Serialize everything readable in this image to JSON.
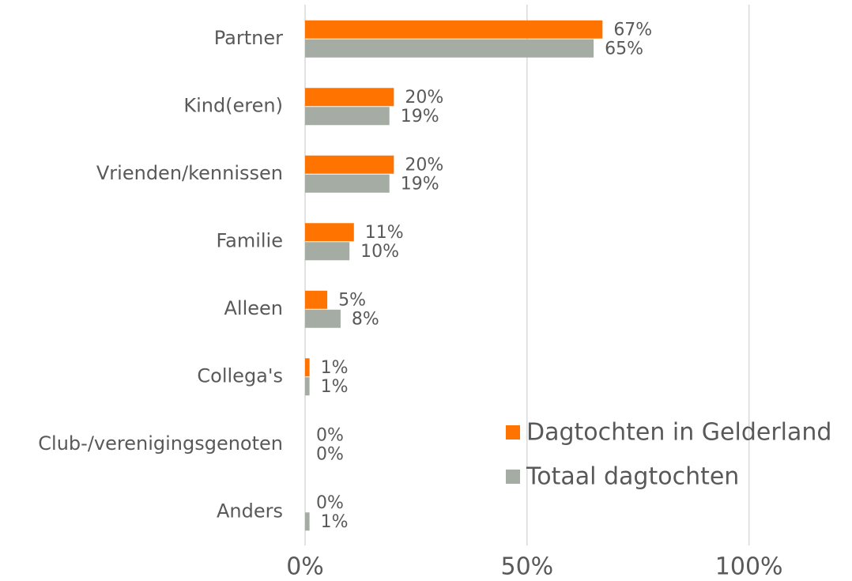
{
  "chart_data": {
    "type": "hbar",
    "categories": [
      "Partner",
      "Kind(eren)",
      "Vrienden/kennissen",
      "Familie",
      "Alleen",
      "Collega's",
      "Club-/verenigingsgenoten",
      "Anders"
    ],
    "series": [
      {
        "name": "Dagtochten in Gelderland",
        "color": "#ff7300",
        "values": [
          67,
          20,
          20,
          11,
          5,
          1,
          0,
          0
        ],
        "value_labels": [
          "67%",
          "20%",
          "20%",
          "11%",
          "5%",
          "1%",
          "0%",
          "0%"
        ]
      },
      {
        "name": "Totaal dagtochten",
        "color": "#a5aca4",
        "values": [
          65,
          19,
          19,
          10,
          8,
          1,
          0,
          1
        ],
        "value_labels": [
          "65%",
          "19%",
          "19%",
          "10%",
          "8%",
          "1%",
          "0%",
          "1%"
        ]
      }
    ],
    "xlim": [
      0,
      120
    ],
    "xticks": [
      {
        "value": 0,
        "label": "0%"
      },
      {
        "value": 50,
        "label": "50%"
      },
      {
        "value": 100,
        "label": "100%"
      }
    ],
    "grid": true,
    "legend": "lower right"
  }
}
